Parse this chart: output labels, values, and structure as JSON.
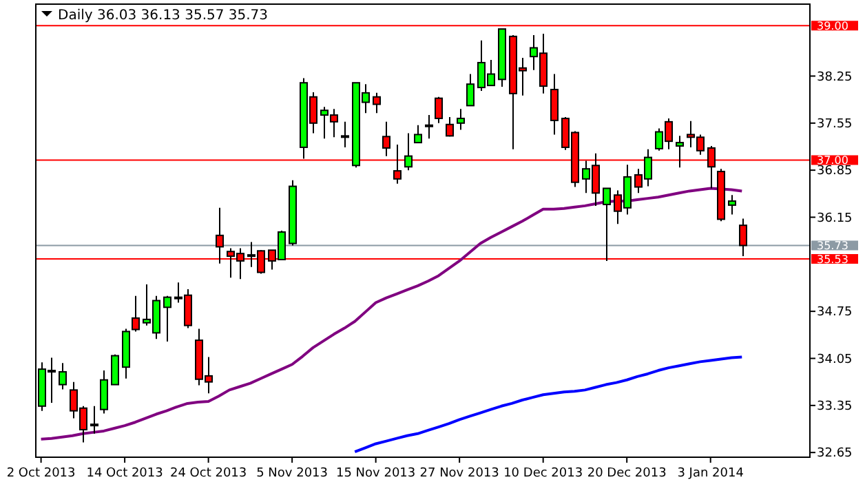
{
  "chart_data": {
    "type": "candlestick",
    "title": "Daily 36.03 36.13 35.57 35.73",
    "categories": [
      "2 Oct 2013",
      null,
      null,
      null,
      null,
      null,
      null,
      null,
      "14 Oct 2013",
      null,
      null,
      null,
      null,
      null,
      null,
      null,
      "24 Oct 2013",
      null,
      null,
      null,
      null,
      null,
      null,
      null,
      "5 Nov 2013",
      null,
      null,
      null,
      null,
      null,
      null,
      null,
      "15 Nov 2013",
      null,
      null,
      null,
      null,
      null,
      null,
      null,
      "27 Nov 2013",
      null,
      null,
      null,
      null,
      null,
      null,
      null,
      "10 Dec 2013",
      null,
      null,
      null,
      null,
      null,
      null,
      null,
      "20 Dec 2013",
      null,
      null,
      null,
      null,
      null,
      null,
      null,
      "3 Jan 2014",
      null,
      null,
      null,
      null,
      null,
      null,
      null,
      null,
      null
    ],
    "ohlc": [
      [
        33.34,
        33.99,
        33.27,
        33.89
      ],
      [
        33.87,
        34.06,
        33.39,
        33.87
      ],
      [
        33.66,
        33.98,
        33.59,
        33.85
      ],
      [
        33.58,
        33.7,
        33.16,
        33.27
      ],
      [
        33.31,
        33.34,
        32.8,
        32.99
      ],
      [
        33.07,
        33.34,
        32.93,
        33.07
      ],
      [
        33.29,
        33.87,
        33.23,
        33.73
      ],
      [
        33.66,
        34.11,
        33.66,
        34.09
      ],
      [
        33.92,
        34.49,
        33.75,
        34.45
      ],
      [
        34.65,
        34.98,
        34.45,
        34.48
      ],
      [
        34.58,
        35.15,
        34.54,
        34.63
      ],
      [
        34.43,
        34.98,
        34.34,
        34.91
      ],
      [
        34.81,
        34.98,
        34.3,
        34.96
      ],
      [
        34.96,
        35.18,
        34.88,
        34.96
      ],
      [
        34.99,
        35.08,
        34.5,
        34.54
      ],
      [
        34.32,
        34.49,
        33.65,
        33.74
      ],
      [
        33.79,
        34.07,
        33.53,
        33.7
      ],
      [
        35.88,
        36.29,
        35.46,
        35.71
      ],
      [
        35.64,
        35.69,
        35.25,
        35.57
      ],
      [
        35.61,
        35.69,
        35.23,
        35.5
      ],
      [
        35.59,
        35.78,
        35.41,
        35.59
      ],
      [
        35.65,
        35.66,
        35.31,
        35.33
      ],
      [
        35.66,
        35.66,
        35.37,
        35.5
      ],
      [
        35.52,
        35.95,
        35.52,
        35.93
      ],
      [
        35.76,
        36.7,
        35.73,
        36.61
      ],
      [
        37.19,
        38.22,
        37.02,
        38.15
      ],
      [
        37.94,
        38.01,
        37.4,
        37.55
      ],
      [
        37.67,
        37.79,
        37.32,
        37.74
      ],
      [
        37.67,
        37.76,
        37.34,
        37.57
      ],
      [
        37.36,
        37.57,
        37.19,
        37.36
      ],
      [
        36.92,
        38.15,
        36.89,
        38.15
      ],
      [
        37.86,
        38.13,
        37.7,
        38.0
      ],
      [
        37.94,
        38.0,
        37.7,
        37.83
      ],
      [
        37.35,
        37.57,
        37.06,
        37.18
      ],
      [
        36.84,
        37.23,
        36.65,
        36.72
      ],
      [
        36.9,
        37.4,
        36.85,
        37.06
      ],
      [
        37.26,
        37.52,
        37.26,
        37.38
      ],
      [
        37.52,
        37.67,
        37.32,
        37.52
      ],
      [
        37.92,
        37.94,
        37.55,
        37.62
      ],
      [
        37.53,
        37.64,
        37.35,
        37.36
      ],
      [
        37.55,
        37.76,
        37.45,
        37.62
      ],
      [
        37.81,
        38.28,
        37.81,
        38.13
      ],
      [
        38.08,
        38.78,
        38.03,
        38.45
      ],
      [
        38.11,
        38.49,
        38.1,
        38.28
      ],
      [
        38.2,
        38.95,
        38.09,
        38.95
      ],
      [
        38.84,
        38.86,
        37.16,
        37.99
      ],
      [
        38.37,
        38.52,
        37.96,
        38.33
      ],
      [
        38.54,
        38.86,
        38.34,
        38.67
      ],
      [
        38.59,
        38.88,
        37.99,
        38.1
      ],
      [
        38.05,
        38.28,
        37.38,
        37.59
      ],
      [
        37.62,
        37.64,
        37.15,
        37.19
      ],
      [
        37.41,
        37.43,
        36.6,
        36.67
      ],
      [
        36.72,
        36.99,
        36.51,
        36.87
      ],
      [
        36.92,
        37.1,
        36.32,
        36.51
      ],
      [
        36.34,
        36.58,
        35.5,
        36.58
      ],
      [
        36.48,
        36.55,
        36.05,
        36.24
      ],
      [
        36.29,
        36.93,
        36.19,
        36.75
      ],
      [
        36.78,
        36.87,
        36.51,
        36.6
      ],
      [
        36.72,
        37.16,
        36.61,
        37.04
      ],
      [
        37.17,
        37.47,
        37.14,
        37.42
      ],
      [
        37.57,
        37.62,
        37.16,
        37.28
      ],
      [
        37.21,
        37.36,
        36.89,
        37.26
      ],
      [
        37.38,
        37.58,
        37.19,
        37.34
      ],
      [
        37.34,
        37.38,
        37.08,
        37.14
      ],
      [
        37.18,
        37.21,
        36.58,
        36.9
      ],
      [
        36.83,
        36.87,
        36.09,
        36.12
      ],
      [
        36.33,
        36.48,
        36.19,
        36.39
      ],
      [
        36.03,
        36.13,
        35.57,
        35.73
      ],
      null,
      null,
      null,
      null,
      null,
      null
    ],
    "colors": [
      "#00ff00",
      "#00ff00",
      "#00ff00",
      "#ff0000",
      "#ff0000",
      "#00ff00",
      "#00ff00",
      "#00ff00",
      "#00ff00",
      "#ff0000",
      "#00ff00",
      "#00ff00",
      "#00ff00",
      "#00ff00",
      "#ff0000",
      "#ff0000",
      "#ff0000",
      "#ff0000",
      "#ff0000",
      "#ff0000",
      "#00ff00",
      "#ff0000",
      "#ff0000",
      "#00ff00",
      "#00ff00",
      "#00ff00",
      "#ff0000",
      "#00ff00",
      "#ff0000",
      "#00ff00",
      "#00ff00",
      "#00ff00",
      "#ff0000",
      "#ff0000",
      "#ff0000",
      "#00ff00",
      "#00ff00",
      "#00ff00",
      "#ff0000",
      "#ff0000",
      "#00ff00",
      "#00ff00",
      "#00ff00",
      "#00ff00",
      "#00ff00",
      "#ff0000",
      "#ff0000",
      "#00ff00",
      "#ff0000",
      "#ff0000",
      "#ff0000",
      "#ff0000",
      "#00ff00",
      "#ff0000",
      "#00ff00",
      "#ff0000",
      "#00ff00",
      "#ff0000",
      "#00ff00",
      "#00ff00",
      "#ff0000",
      "#00ff00",
      "#ff0000",
      "#ff0000",
      "#ff0000",
      "#ff0000",
      "#00ff00",
      "#ff0000",
      null,
      null,
      null,
      null,
      null,
      null
    ],
    "series": [
      {
        "type": "line",
        "color": "#800080",
        "values": [
          32.85,
          32.86,
          32.88,
          32.9,
          32.93,
          32.95,
          32.97,
          33.01,
          33.05,
          33.1,
          33.16,
          33.22,
          33.27,
          33.33,
          33.38,
          33.4,
          33.41,
          33.49,
          33.58,
          33.63,
          33.68,
          33.75,
          33.82,
          33.89,
          33.96,
          34.08,
          34.21,
          34.31,
          34.41,
          34.5,
          34.6,
          34.74,
          34.88,
          34.95,
          35.01,
          35.07,
          35.13,
          35.2,
          35.28,
          35.39,
          35.5,
          35.63,
          35.76,
          35.85,
          35.93,
          36.01,
          36.09,
          36.18,
          36.27,
          36.27,
          36.28,
          36.3,
          36.32,
          36.35,
          36.38,
          36.39,
          36.39,
          36.41,
          36.43,
          36.45,
          36.48,
          36.51,
          36.54,
          36.56,
          36.58,
          36.57,
          36.56,
          36.54,
          null,
          null,
          null,
          null,
          null,
          null
        ]
      },
      {
        "type": "line",
        "color": "#0000ff",
        "values": [
          null,
          null,
          null,
          null,
          null,
          null,
          null,
          null,
          null,
          null,
          null,
          null,
          null,
          null,
          null,
          null,
          null,
          null,
          null,
          null,
          null,
          null,
          null,
          null,
          null,
          null,
          null,
          null,
          null,
          null,
          32.66,
          32.72,
          32.78,
          32.82,
          32.86,
          32.9,
          32.93,
          32.98,
          33.03,
          33.08,
          33.14,
          33.19,
          33.24,
          33.29,
          33.34,
          33.38,
          33.43,
          33.47,
          33.51,
          33.53,
          33.55,
          33.56,
          33.58,
          33.62,
          33.66,
          33.69,
          33.73,
          33.78,
          33.82,
          33.87,
          33.91,
          33.94,
          33.97,
          34.0,
          34.02,
          34.04,
          34.06,
          34.07,
          null,
          null,
          null,
          null,
          null,
          null
        ]
      }
    ],
    "ylim": [
      32.58,
      39.32
    ],
    "yticks": [
      38.25,
      37.55,
      36.85,
      36.15,
      34.75,
      34.05,
      33.35,
      32.65
    ],
    "ref_lines": [
      {
        "axis": "y",
        "value": 39.0,
        "label": "39.00",
        "color": "#ff0000"
      },
      {
        "axis": "y",
        "value": 37.0,
        "label": "37.00",
        "color": "#ff0000"
      },
      {
        "axis": "y",
        "value": 35.73,
        "label": "35.73",
        "color": "#8c9aa4"
      },
      {
        "axis": "y",
        "value": 35.53,
        "label": "35.53",
        "color": "#ff0000"
      }
    ]
  }
}
